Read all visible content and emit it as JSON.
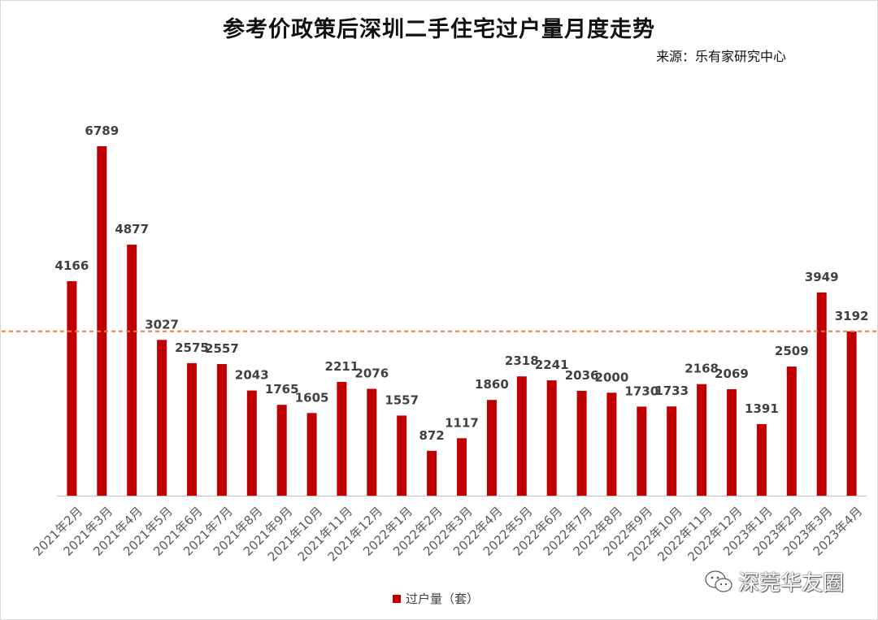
{
  "header": {
    "title": "参考价政策后深圳二手住宅过户量月度走势",
    "source": "来源：乐有家研究中心"
  },
  "watermark": {
    "text": "深莞华友圈",
    "icon": "wechat-icon"
  },
  "colors": {
    "bar": "#c00000",
    "reference_line": "#ed7d31",
    "axis": "#bfbfbf"
  },
  "chart_data": {
    "type": "bar",
    "title": "参考价政策后深圳二手住宅过户量月度走势",
    "categories": [
      "2021年2月",
      "2021年3月",
      "2021年4月",
      "2021年5月",
      "2021年6月",
      "2021年7月",
      "2021年8月",
      "2021年9月",
      "2021年10月",
      "2021年11月",
      "2021年12月",
      "2022年1月",
      "2022年2月",
      "2022年3月",
      "2022年4月",
      "2022年5月",
      "2022年6月",
      "2022年7月",
      "2022年8月",
      "2022年9月",
      "2022年10月",
      "2022年11月",
      "2022年12月",
      "2023年1月",
      "2023年2月",
      "2023年3月",
      "2023年4月"
    ],
    "series": [
      {
        "name": "过户量（套）",
        "values": [
          4166,
          6789,
          4877,
          3027,
          2575,
          2557,
          2043,
          1765,
          1605,
          2211,
          2076,
          1557,
          872,
          1117,
          1860,
          2318,
          2241,
          2036,
          2000,
          1730,
          1733,
          2168,
          2069,
          1391,
          2509,
          3949,
          3192
        ]
      }
    ],
    "reference_line_value": 3192,
    "ylim": [
      0,
      7000
    ],
    "grid": false,
    "legend_position": "bottom",
    "xlabel": "",
    "ylabel": ""
  }
}
